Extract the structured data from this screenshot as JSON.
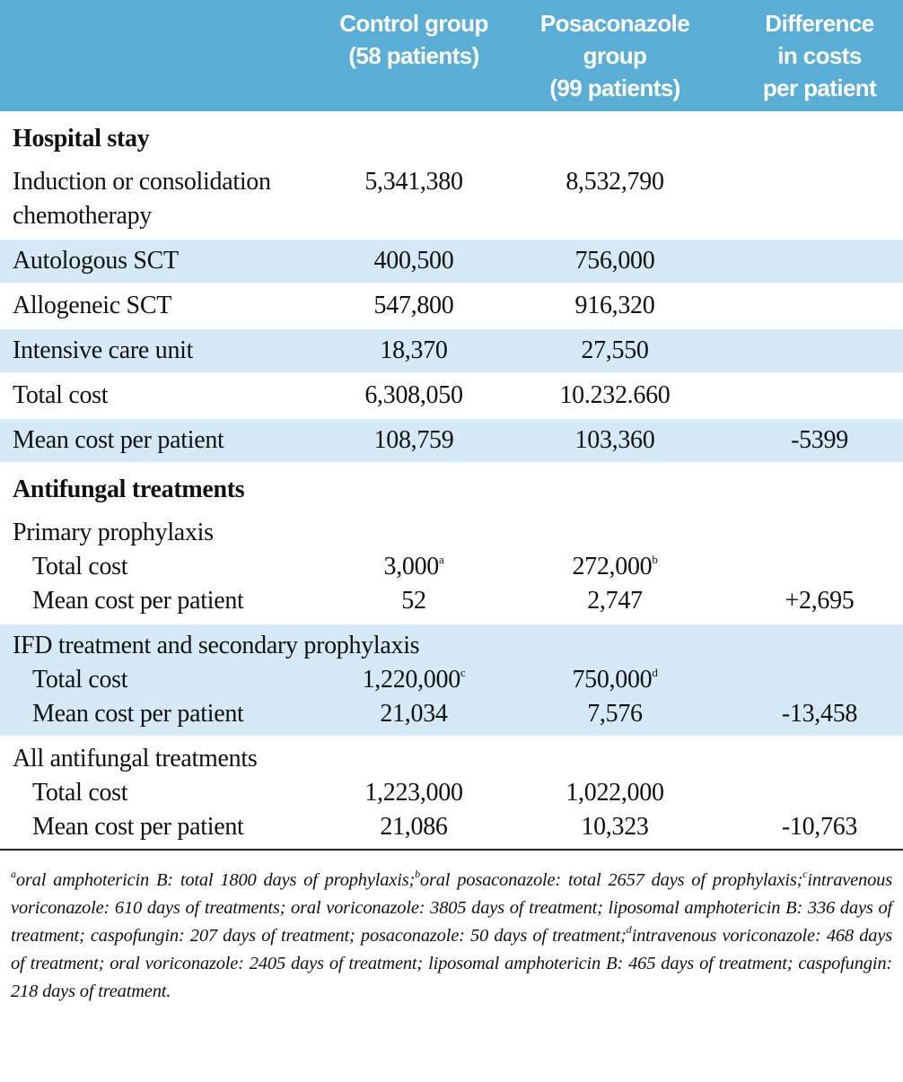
{
  "table": {
    "header": {
      "columns": [
        [
          "Control group",
          "(58 patients)"
        ],
        [
          "Posaconazole",
          "group",
          "(99 patients)"
        ],
        [
          "Difference",
          "in costs",
          "per patient"
        ]
      ]
    },
    "rows": [
      {
        "type": "section",
        "label": "Hospital stay"
      },
      {
        "type": "row",
        "label": "Induction or consolidation chemotherapy",
        "shaded": false,
        "cells": [
          "5,341,380",
          "8,532,790",
          null
        ]
      },
      {
        "type": "row",
        "label": "Autologous SCT",
        "shaded": true,
        "cells": [
          "400,500",
          "756,000",
          null
        ]
      },
      {
        "type": "row",
        "label": "Allogeneic SCT",
        "shaded": false,
        "cells": [
          "547,800",
          "916,320",
          null
        ]
      },
      {
        "type": "row",
        "label": "Intensive care unit",
        "shaded": true,
        "cells": [
          "18,370",
          "27,550",
          null
        ]
      },
      {
        "type": "row",
        "label": "Total cost",
        "shaded": false,
        "cells": [
          "6,308,050",
          "10.232.660",
          null
        ]
      },
      {
        "type": "row",
        "label": "Mean cost per patient",
        "shaded": true,
        "cells": [
          "108,759",
          "103,360",
          "-5399"
        ]
      },
      {
        "type": "section",
        "label": "Antifungal treatments"
      },
      {
        "type": "group",
        "label": "Primary prophylaxis",
        "shaded": false,
        "rows": [
          {
            "label": "Total cost",
            "cells": [
              {
                "text": "3,000",
                "note": "a"
              },
              {
                "text": "272,000",
                "note": "b"
              },
              null
            ]
          },
          {
            "label": "Mean cost per patient",
            "cells": [
              "52",
              "2,747",
              "+2,695"
            ]
          }
        ]
      },
      {
        "type": "group",
        "label": "IFD treatment and secondary prophylaxis",
        "shaded": true,
        "rows": [
          {
            "label": "Total cost",
            "cells": [
              {
                "text": "1,220,000",
                "note": "c"
              },
              {
                "text": "750,000",
                "note": "d"
              },
              null
            ]
          },
          {
            "label": "Mean cost per patient",
            "cells": [
              "21,034",
              "7,576",
              "-13,458"
            ]
          }
        ]
      },
      {
        "type": "group",
        "label": "All antifungal treatments",
        "shaded": false,
        "rows": [
          {
            "label": "Total cost",
            "cells": [
              "1,223,000",
              "1,022,000",
              null
            ]
          },
          {
            "label": "Mean cost per patient",
            "cells": [
              "21,086",
              "10,323",
              "-10,763"
            ]
          }
        ]
      }
    ]
  },
  "footnotes": [
    {
      "mark": "a",
      "text": "oral amphotericin B: total 1800 days of prophylaxis;"
    },
    {
      "mark": "b",
      "text": "oral posaconazole: total 2657 days of prophylaxis;"
    },
    {
      "mark": "c",
      "text": "intravenous voriconazole: 610 days of treatments; oral voriconazole: 3805 days of treatment; liposomal amphotericin B: 336 days of treatment; caspofungin: 207 days of treatment; posaconazole: 50 days of treatment;"
    },
    {
      "mark": "d",
      "text": "intravenous voriconazole: 468 days of treatment; oral voriconazole: 2405 days of treatment; liposomal amphotericin B: 465 days of treatment; caspofungin: 218 days of treatment."
    }
  ]
}
